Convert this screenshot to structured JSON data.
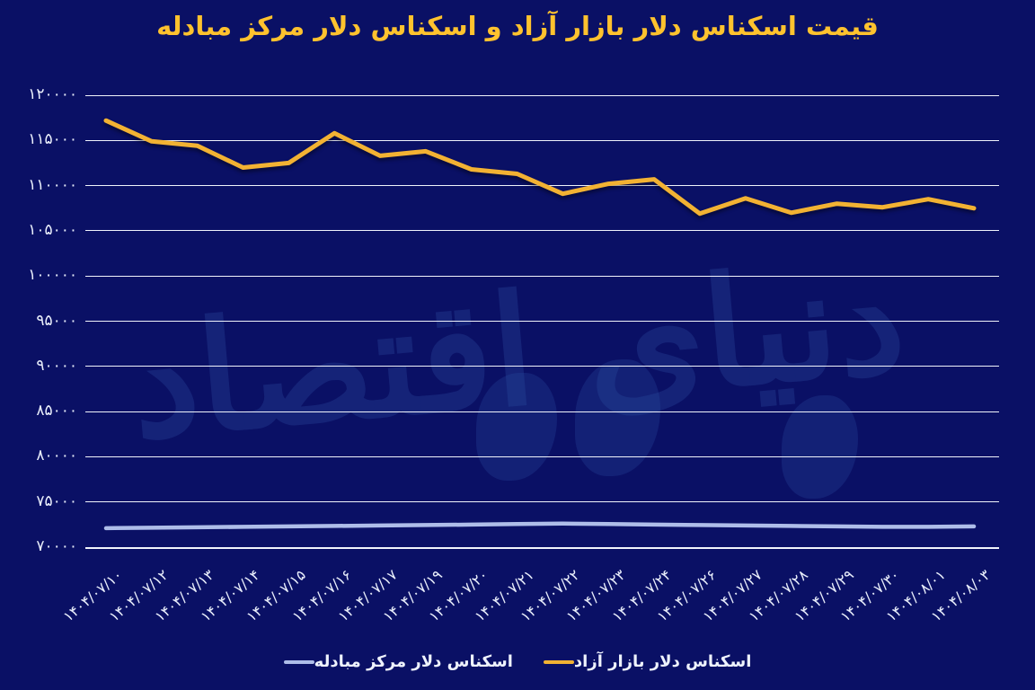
{
  "title": "قیمت اسکناس دلار بازار آزاد و اسکناس دلار مرکز مبادله",
  "watermark": "دنیای اقتصاد",
  "colors": {
    "background": "#0a1065",
    "title": "#ffc22e",
    "free_market_line": "#f2b233",
    "exchange_center_line": "#aebde9",
    "gridline": "#f0f3fb",
    "axis_text": "#e9eefb",
    "watermark": "#2a4a9e"
  },
  "legend": [
    {
      "label": "اسکناس دلار بازار آزاد",
      "color_key": "free_market_line"
    },
    {
      "label": "اسکناس دلار مرکز مبادله",
      "color_key": "exchange_center_line"
    }
  ],
  "chart_data": {
    "type": "line",
    "title": "قیمت اسکناس دلار بازار آزاد و اسکناس دلار مرکز مبادله",
    "xlabel": "",
    "ylabel": "",
    "grid": true,
    "legend_position": "bottom",
    "ylim": [
      70000,
      120000
    ],
    "y_ticks": [
      {
        "label": "۱۲۰۰۰۰",
        "value": 120000
      },
      {
        "label": "۱۱۵۰۰۰",
        "value": 115000
      },
      {
        "label": "۱۱۰۰۰۰",
        "value": 110000
      },
      {
        "label": "۱۰۵۰۰۰",
        "value": 105000
      },
      {
        "label": "۱۰۰۰۰۰",
        "value": 100000
      },
      {
        "label": "۹۵۰۰۰",
        "value": 95000
      },
      {
        "label": "۹۰۰۰۰",
        "value": 90000
      },
      {
        "label": "۸۵۰۰۰",
        "value": 85000
      },
      {
        "label": "۸۰۰۰۰",
        "value": 80000
      },
      {
        "label": "۷۵۰۰۰",
        "value": 75000
      },
      {
        "label": "۷۰۰۰۰",
        "value": 70000
      }
    ],
    "categories": [
      "۱۴۰۴/۰۷/۱۰",
      "۱۴۰۴/۰۷/۱۲",
      "۱۴۰۴/۰۷/۱۳",
      "۱۴۰۴/۰۷/۱۴",
      "۱۴۰۴/۰۷/۱۵",
      "۱۴۰۴/۰۷/۱۶",
      "۱۴۰۴/۰۷/۱۷",
      "۱۴۰۴/۰۷/۱۹",
      "۱۴۰۴/۰۷/۲۰",
      "۱۴۰۴/۰۷/۲۱",
      "۱۴۰۴/۰۷/۲۲",
      "۱۴۰۴/۰۷/۲۳",
      "۱۴۰۴/۰۷/۲۴",
      "۱۴۰۴/۰۷/۲۶",
      "۱۴۰۴/۰۷/۲۷",
      "۱۴۰۴/۰۷/۲۸",
      "۱۴۰۴/۰۷/۲۹",
      "۱۴۰۴/۰۷/۳۰",
      "۱۴۰۴/۰۸/۰۱",
      "۱۴۰۴/۰۸/۰۳"
    ],
    "series": [
      {
        "name": "اسکناس دلار بازار آزاد",
        "color": "#f2b233",
        "values": [
          117200,
          114900,
          114400,
          112000,
          112500,
          115800,
          113300,
          113800,
          111800,
          111300,
          109100,
          110200,
          110700,
          106900,
          108600,
          107000,
          108000,
          107600,
          108500,
          107500
        ]
      },
      {
        "name": "اسکناس دلار مرکز مبادله",
        "color": "#aebde9",
        "values": [
          72100,
          72150,
          72200,
          72250,
          72300,
          72350,
          72400,
          72450,
          72500,
          72550,
          72600,
          72550,
          72500,
          72450,
          72400,
          72350,
          72300,
          72250,
          72250,
          72300
        ]
      }
    ]
  }
}
